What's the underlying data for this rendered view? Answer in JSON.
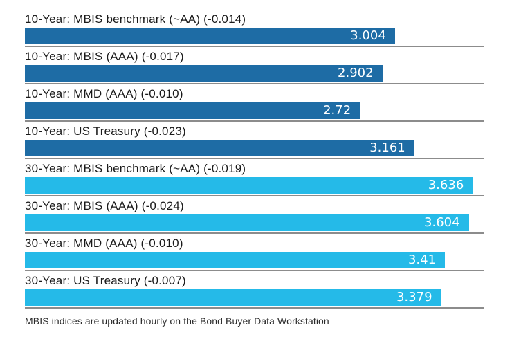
{
  "chart_data": {
    "type": "bar",
    "orientation": "horizontal",
    "xlim": [
      0,
      3.73
    ],
    "grid": false,
    "legend": "none",
    "colors": {
      "ten_year": "#1e6ca5",
      "thirty_year": "#25bae8",
      "separator": "#8c8c8c",
      "label_text": "#1a1a1a",
      "value_text": "#ffffff"
    },
    "rows": [
      {
        "label": "10-Year: MBIS benchmark (~AA) (-0.014)",
        "value": 3.004,
        "display": "3.004",
        "group": "ten_year"
      },
      {
        "label": "10-Year: MBIS (AAA) (-0.017)",
        "value": 2.902,
        "display": "2.902",
        "group": "ten_year"
      },
      {
        "label": "10-Year: MMD (AAA) (-0.010)",
        "value": 2.72,
        "display": "2.72",
        "group": "ten_year"
      },
      {
        "label": "10-Year: US Treasury (-0.023)",
        "value": 3.161,
        "display": "3.161",
        "group": "ten_year"
      },
      {
        "label": "30-Year: MBIS benchmark (~AA) (-0.019)",
        "value": 3.636,
        "display": "3.636",
        "group": "thirty_year"
      },
      {
        "label": "30-Year: MBIS (AAA) (-0.024)",
        "value": 3.604,
        "display": "3.604",
        "group": "thirty_year"
      },
      {
        "label": "30-Year: MMD (AAA) (-0.010)",
        "value": 3.41,
        "display": "3.41",
        "group": "thirty_year"
      },
      {
        "label": "30-Year: US Treasury (-0.007)",
        "value": 3.379,
        "display": "3.379",
        "group": "thirty_year"
      }
    ],
    "note": "MBIS indices are updated hourly on the Bond Buyer Data Workstation"
  }
}
